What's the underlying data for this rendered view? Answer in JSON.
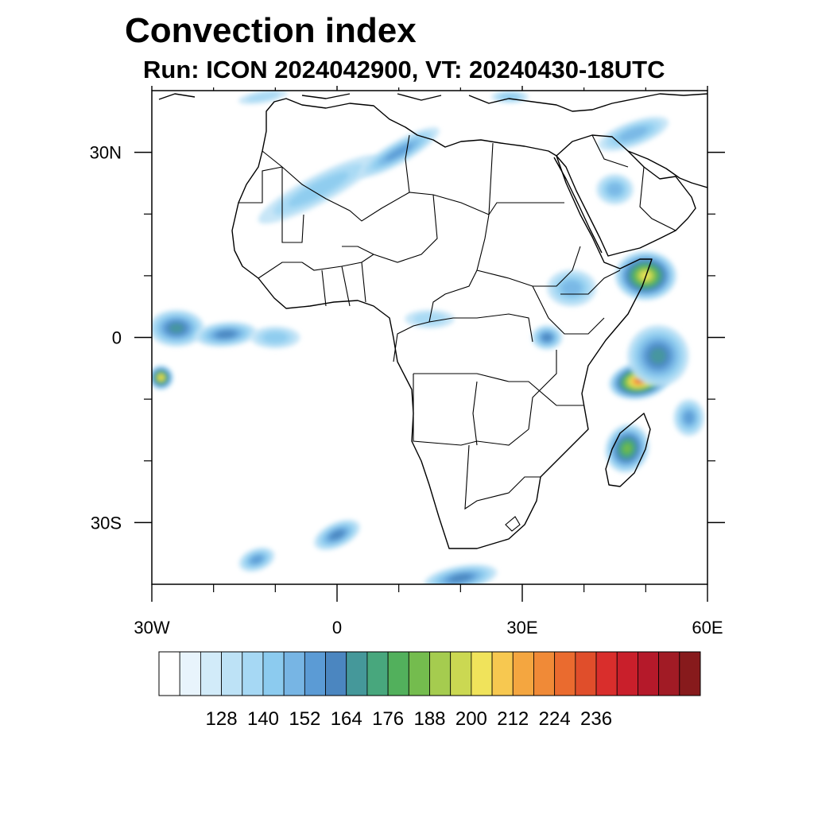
{
  "title": "Convection index",
  "subtitle": "Run: ICON 2024042900,  VT: 20240430-18UTC",
  "map": {
    "lon_range": [
      -30,
      60
    ],
    "lat_range": [
      -40,
      40
    ],
    "lon_ticks": [
      {
        "value": -30,
        "label": "30W"
      },
      {
        "value": 0,
        "label": "0"
      },
      {
        "value": 30,
        "label": "30E"
      },
      {
        "value": 60,
        "label": "60E"
      }
    ],
    "lat_ticks": [
      {
        "value": 30,
        "label": "30N"
      },
      {
        "value": 0,
        "label": "0"
      },
      {
        "value": -30,
        "label": "30S"
      }
    ],
    "minor_lon_ticks": [
      -20,
      -10,
      10,
      20,
      40,
      50
    ],
    "minor_lat_ticks": [
      20,
      10,
      -10,
      -20
    ],
    "fields": [
      {
        "lon": -26,
        "lat": 1.5,
        "rlon": 4.5,
        "rlat": 3.0,
        "level": 9,
        "rot": 0
      },
      {
        "lon": -18,
        "lat": 0.5,
        "rlon": 5.0,
        "rlat": 2.0,
        "level": 8,
        "rot": -5
      },
      {
        "lon": -10,
        "lat": 0.0,
        "rlon": 4.0,
        "rlat": 1.8,
        "level": 5,
        "rot": 0
      },
      {
        "lon": -28.5,
        "lat": -6.5,
        "rlon": 2.0,
        "rlat": 2.0,
        "level": 16,
        "rot": 0
      },
      {
        "lon": -3,
        "lat": 24,
        "rlon": 11,
        "rlat": 2.3,
        "level": 5,
        "rot": -28
      },
      {
        "lon": 10,
        "lat": 30,
        "rlon": 7.5,
        "rlat": 1.8,
        "level": 7,
        "rot": -30
      },
      {
        "lon": 50,
        "lat": 10,
        "rlon": 5.0,
        "rlat": 4.0,
        "level": 15,
        "rot": 0
      },
      {
        "lon": 49,
        "lat": -7,
        "rlon": 5.0,
        "rlat": 3.0,
        "level": 19,
        "rot": -10
      },
      {
        "lon": 52,
        "lat": -3,
        "rlon": 5.0,
        "rlat": 5.0,
        "level": 9,
        "rot": 0
      },
      {
        "lon": 47,
        "lat": -18,
        "rlon": 3.5,
        "rlat": 4.0,
        "level": 12,
        "rot": 20
      },
      {
        "lon": 57,
        "lat": -13,
        "rlon": 2.5,
        "rlat": 3.0,
        "level": 7,
        "rot": 0
      },
      {
        "lon": 38,
        "lat": 8,
        "rlon": 4.0,
        "rlat": 3.0,
        "level": 6,
        "rot": 0
      },
      {
        "lon": 34,
        "lat": 0,
        "rlon": 2.5,
        "rlat": 2.0,
        "level": 8,
        "rot": 0
      },
      {
        "lon": 45,
        "lat": 24,
        "rlon": 3.0,
        "rlat": 2.5,
        "level": 6,
        "rot": 0
      },
      {
        "lon": 48,
        "lat": 33,
        "rlon": 6.0,
        "rlat": 2.0,
        "level": 6,
        "rot": -20
      },
      {
        "lon": 15,
        "lat": 3,
        "rlon": 4.0,
        "rlat": 1.5,
        "level": 4,
        "rot": 0
      },
      {
        "lon": 0,
        "lat": -32,
        "rlon": 4.0,
        "rlat": 2.0,
        "level": 8,
        "rot": -25
      },
      {
        "lon": -13,
        "lat": -36,
        "rlon": 3.0,
        "rlat": 1.8,
        "level": 7,
        "rot": -20
      },
      {
        "lon": 20,
        "lat": -39,
        "rlon": 6.0,
        "rlat": 2.0,
        "level": 8,
        "rot": -10
      },
      {
        "lon": -12,
        "lat": 39,
        "rlon": 4.0,
        "rlat": 1.0,
        "level": 4,
        "rot": -10
      },
      {
        "lon": 28,
        "lat": 39,
        "rlon": 3.0,
        "rlat": 1.0,
        "level": 5,
        "rot": 0
      }
    ]
  },
  "colorbar": {
    "colors": [
      "#ffffff",
      "#e8f4fc",
      "#d2ebf9",
      "#bde2f6",
      "#a6d8f4",
      "#8ccbef",
      "#77b5e4",
      "#5b9bd5",
      "#4b86c0",
      "#45989a",
      "#48a77d",
      "#52b05c",
      "#74bc4e",
      "#a5cc4f",
      "#cbd852",
      "#f0e35b",
      "#f7c850",
      "#f4a640",
      "#f08a37",
      "#ea6b2f",
      "#e04e2b",
      "#d92e2c",
      "#c91f2b",
      "#b5192a",
      "#a11b25",
      "#871a1c"
    ],
    "labels": [
      "128",
      "140",
      "152",
      "164",
      "176",
      "188",
      "200",
      "212",
      "224",
      "236"
    ]
  }
}
